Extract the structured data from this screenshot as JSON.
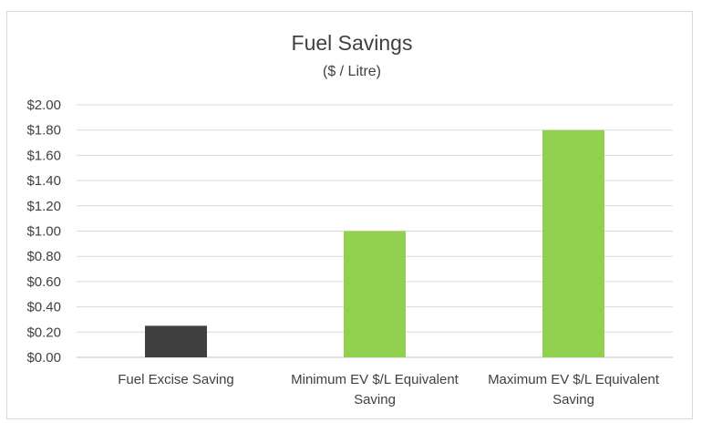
{
  "chart_data": {
    "type": "bar",
    "title": "Fuel Savings",
    "subtitle": "($ / Litre)",
    "categories": [
      [
        "Fuel Excise Saving"
      ],
      [
        "Minimum EV $/L Equivalent",
        "Saving"
      ],
      [
        "Maximum EV $/L Equivalent",
        "Saving"
      ]
    ],
    "values": [
      0.25,
      1.0,
      1.8
    ],
    "bar_colors": [
      "#404040",
      "#92d050",
      "#92d050"
    ],
    "ylim": [
      0,
      2.0
    ],
    "yticks": [
      "$0.00",
      "$0.20",
      "$0.40",
      "$0.60",
      "$0.80",
      "$1.00",
      "$1.20",
      "$1.40",
      "$1.60",
      "$1.80",
      "$2.00"
    ],
    "grid": true,
    "legend": "none"
  }
}
